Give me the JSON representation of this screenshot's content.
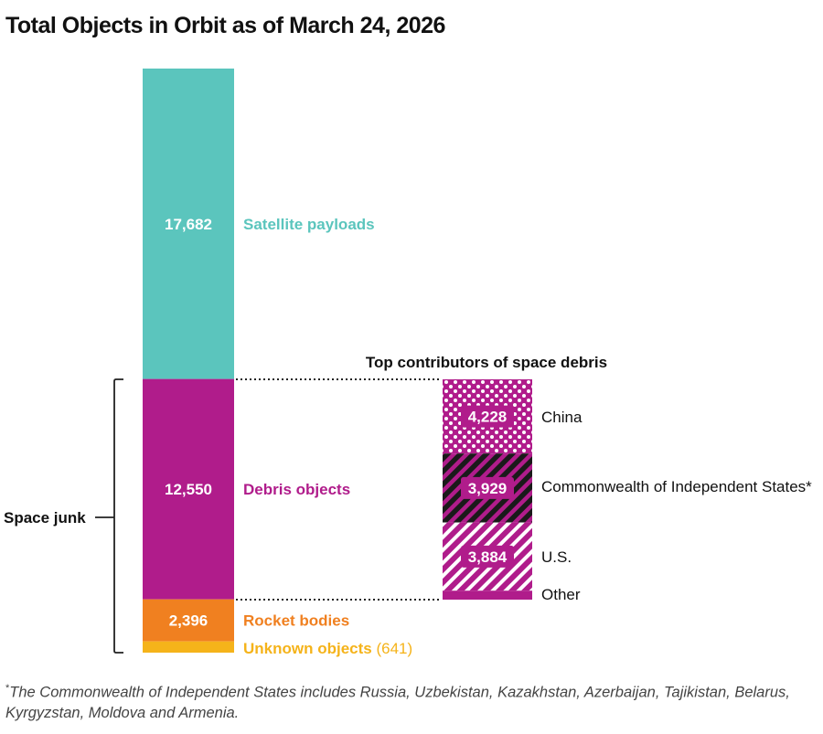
{
  "title": "Total Objects in Orbit as of March 24, 2026",
  "footnote": {
    "marker": "*",
    "text": "The Commonwealth of Independent States includes Russia, Uzbekistan, Kazakhstan, Azerbaijan, Tajikistan, Belarus, Kyrgyzstan, Moldova and Armenia."
  },
  "chart_data": {
    "type": "bar",
    "title": "Total Objects in Orbit as of March 24, 2026",
    "main_stack": {
      "categories": [
        "Satellite payloads",
        "Debris objects",
        "Rocket bodies",
        "Unknown objects"
      ],
      "values": [
        17682,
        12550,
        2396,
        641
      ],
      "value_labels": [
        "17,682",
        "12,550",
        "2,396",
        "(641)"
      ],
      "colors": [
        "#5bc5bd",
        "#b01c8b",
        "#f08020",
        "#f5b31a"
      ]
    },
    "bracket_label": "Space junk",
    "debris_breakdown": {
      "title": "Top contributors of space debris",
      "categories": [
        "China",
        "Commonwealth of Independent States*",
        "U.S.",
        "Other"
      ],
      "values": [
        4228,
        3929,
        3884,
        509
      ],
      "value_labels": [
        "4,228",
        "3,929",
        "3,884",
        ""
      ],
      "patterns": [
        "dots",
        "dark-stripes",
        "light-stripes",
        "solid"
      ],
      "color": "#b01c8b"
    }
  }
}
